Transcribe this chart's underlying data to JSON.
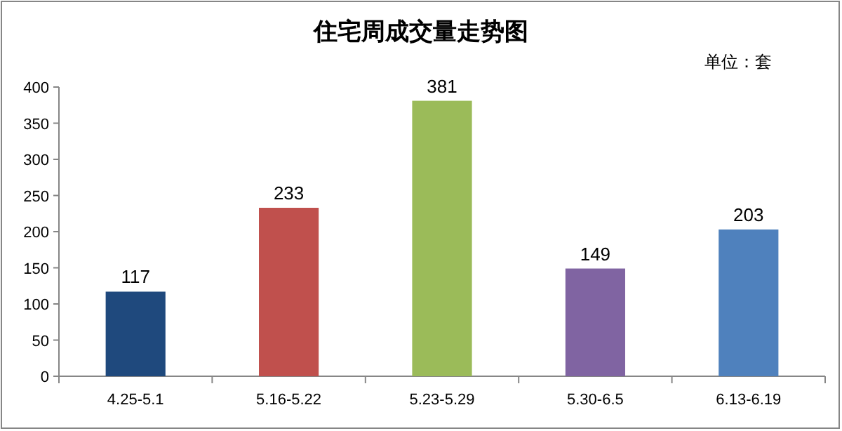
{
  "chart_data": {
    "type": "bar",
    "title": "住宅周成交量走势图",
    "annotations": [
      "单位：套"
    ],
    "categories": [
      "4.25-5.1",
      "5.16-5.22",
      "5.23-5.29",
      "5.30-6.5",
      "6.13-6.19"
    ],
    "values": [
      117,
      233,
      381,
      149,
      203
    ],
    "colors": [
      "#1f497d",
      "#c0504d",
      "#9bbb59",
      "#8064a2",
      "#4f81bd"
    ],
    "ylim": [
      0,
      400
    ],
    "yticks": [
      0,
      50,
      100,
      150,
      200,
      250,
      300,
      350,
      400
    ],
    "data_labels": true,
    "grid": false
  }
}
